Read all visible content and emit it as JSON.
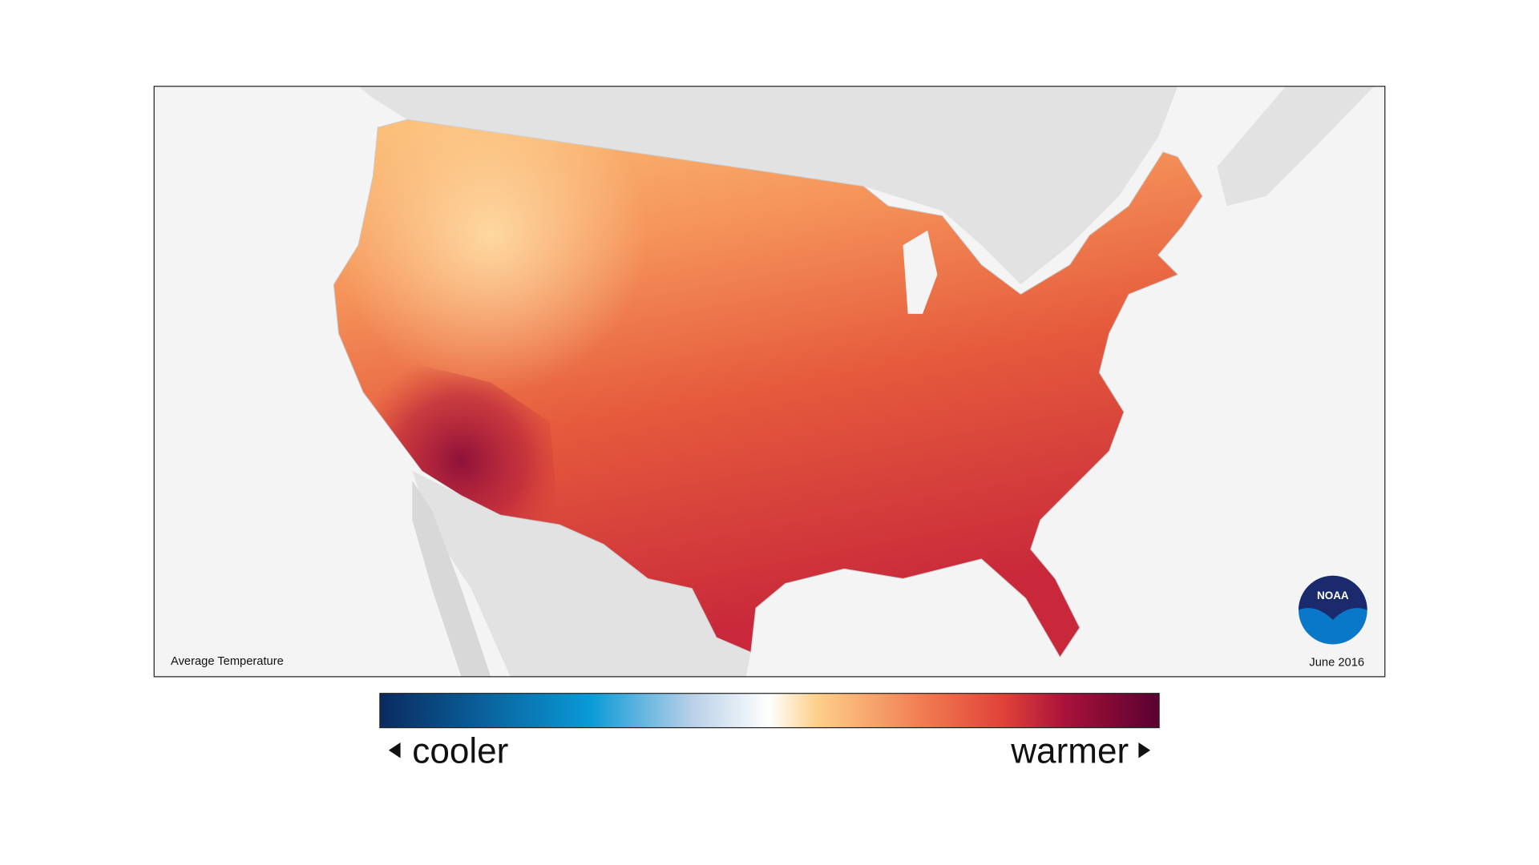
{
  "map": {
    "label": "Average Temperature",
    "date": "June 2016",
    "logo": "NOAA"
  },
  "legend": {
    "low_label": "cooler",
    "high_label": "warmer"
  }
}
